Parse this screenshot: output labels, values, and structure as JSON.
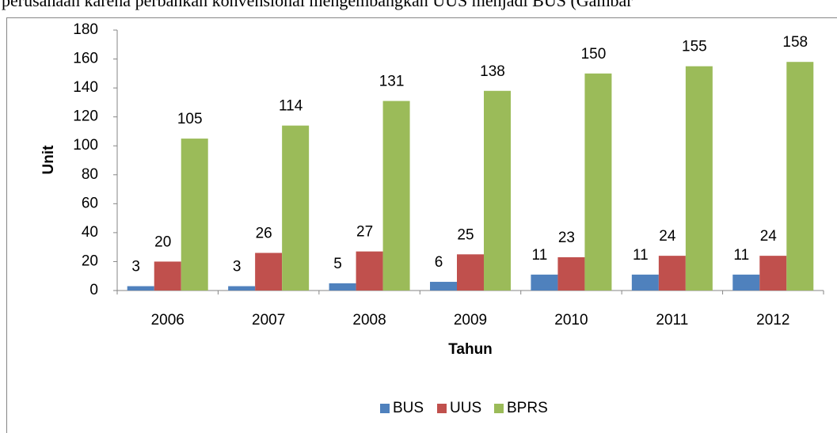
{
  "document": {
    "text": "perusahaan karena perbankan konvensional mengembangkan UUS menjadi BUS (Gambar"
  },
  "chart_data": {
    "type": "bar",
    "x_label": "Tahun",
    "y_label": "Unit",
    "categories": [
      "2006",
      "2007",
      "2008",
      "2009",
      "2010",
      "2011",
      "2012"
    ],
    "series": [
      {
        "name": "BUS",
        "color": "#4f81bd",
        "values": [
          3,
          3,
          5,
          6,
          11,
          11,
          11
        ]
      },
      {
        "name": "UUS",
        "color": "#c0504d",
        "values": [
          20,
          26,
          27,
          25,
          23,
          24,
          24
        ]
      },
      {
        "name": "BPRS",
        "color": "#9bbb59",
        "values": [
          105,
          114,
          131,
          138,
          150,
          155,
          158
        ]
      }
    ],
    "ylim": [
      0,
      180
    ],
    "yticks": [
      0,
      20,
      40,
      60,
      80,
      100,
      120,
      140,
      160,
      180
    ],
    "grid": false,
    "legend": "bottom"
  }
}
